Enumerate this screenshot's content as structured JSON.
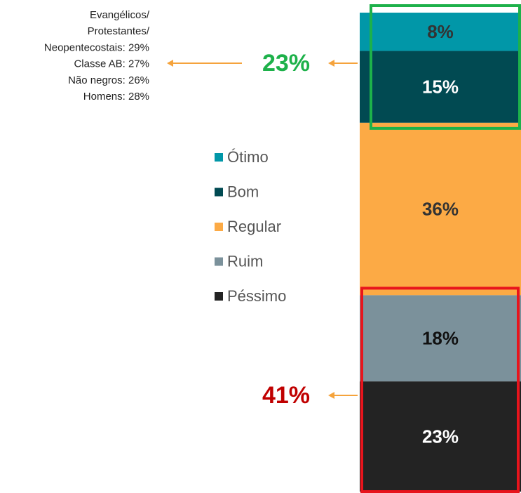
{
  "chart_data": {
    "type": "stacked_bar",
    "series": [
      {
        "name": "Ótimo",
        "color": "#0197a8",
        "label_color": "#333333",
        "values": [
          8
        ],
        "value_labels": [
          "8%"
        ]
      },
      {
        "name": "Bom",
        "color": "#014a52",
        "label_color": "#ffffff",
        "values": [
          15
        ],
        "value_labels": [
          "15%"
        ]
      },
      {
        "name": "Regular",
        "color": "#fcaa45",
        "label_color": "#333333",
        "values": [
          36
        ],
        "value_labels": [
          "36%"
        ]
      },
      {
        "name": "Ruim",
        "color": "#7b919b",
        "label_color": "#111111",
        "values": [
          18
        ],
        "value_labels": [
          "18%"
        ]
      },
      {
        "name": "Péssimo",
        "color": "#232323",
        "label_color": "#ffffff",
        "values": [
          23
        ],
        "value_labels": [
          "23%"
        ]
      }
    ],
    "annotations": [
      {
        "text": "23%",
        "color": "#1db14a"
      },
      {
        "text": "41%",
        "color": "#c00000"
      }
    ],
    "note": [
      "Evangélicos/",
      "Protestantes/",
      "Neopentecostais: 29%",
      "Classe AB: 27%",
      "Não negros: 26%",
      "Homens: 28%"
    ],
    "legend": "left"
  }
}
